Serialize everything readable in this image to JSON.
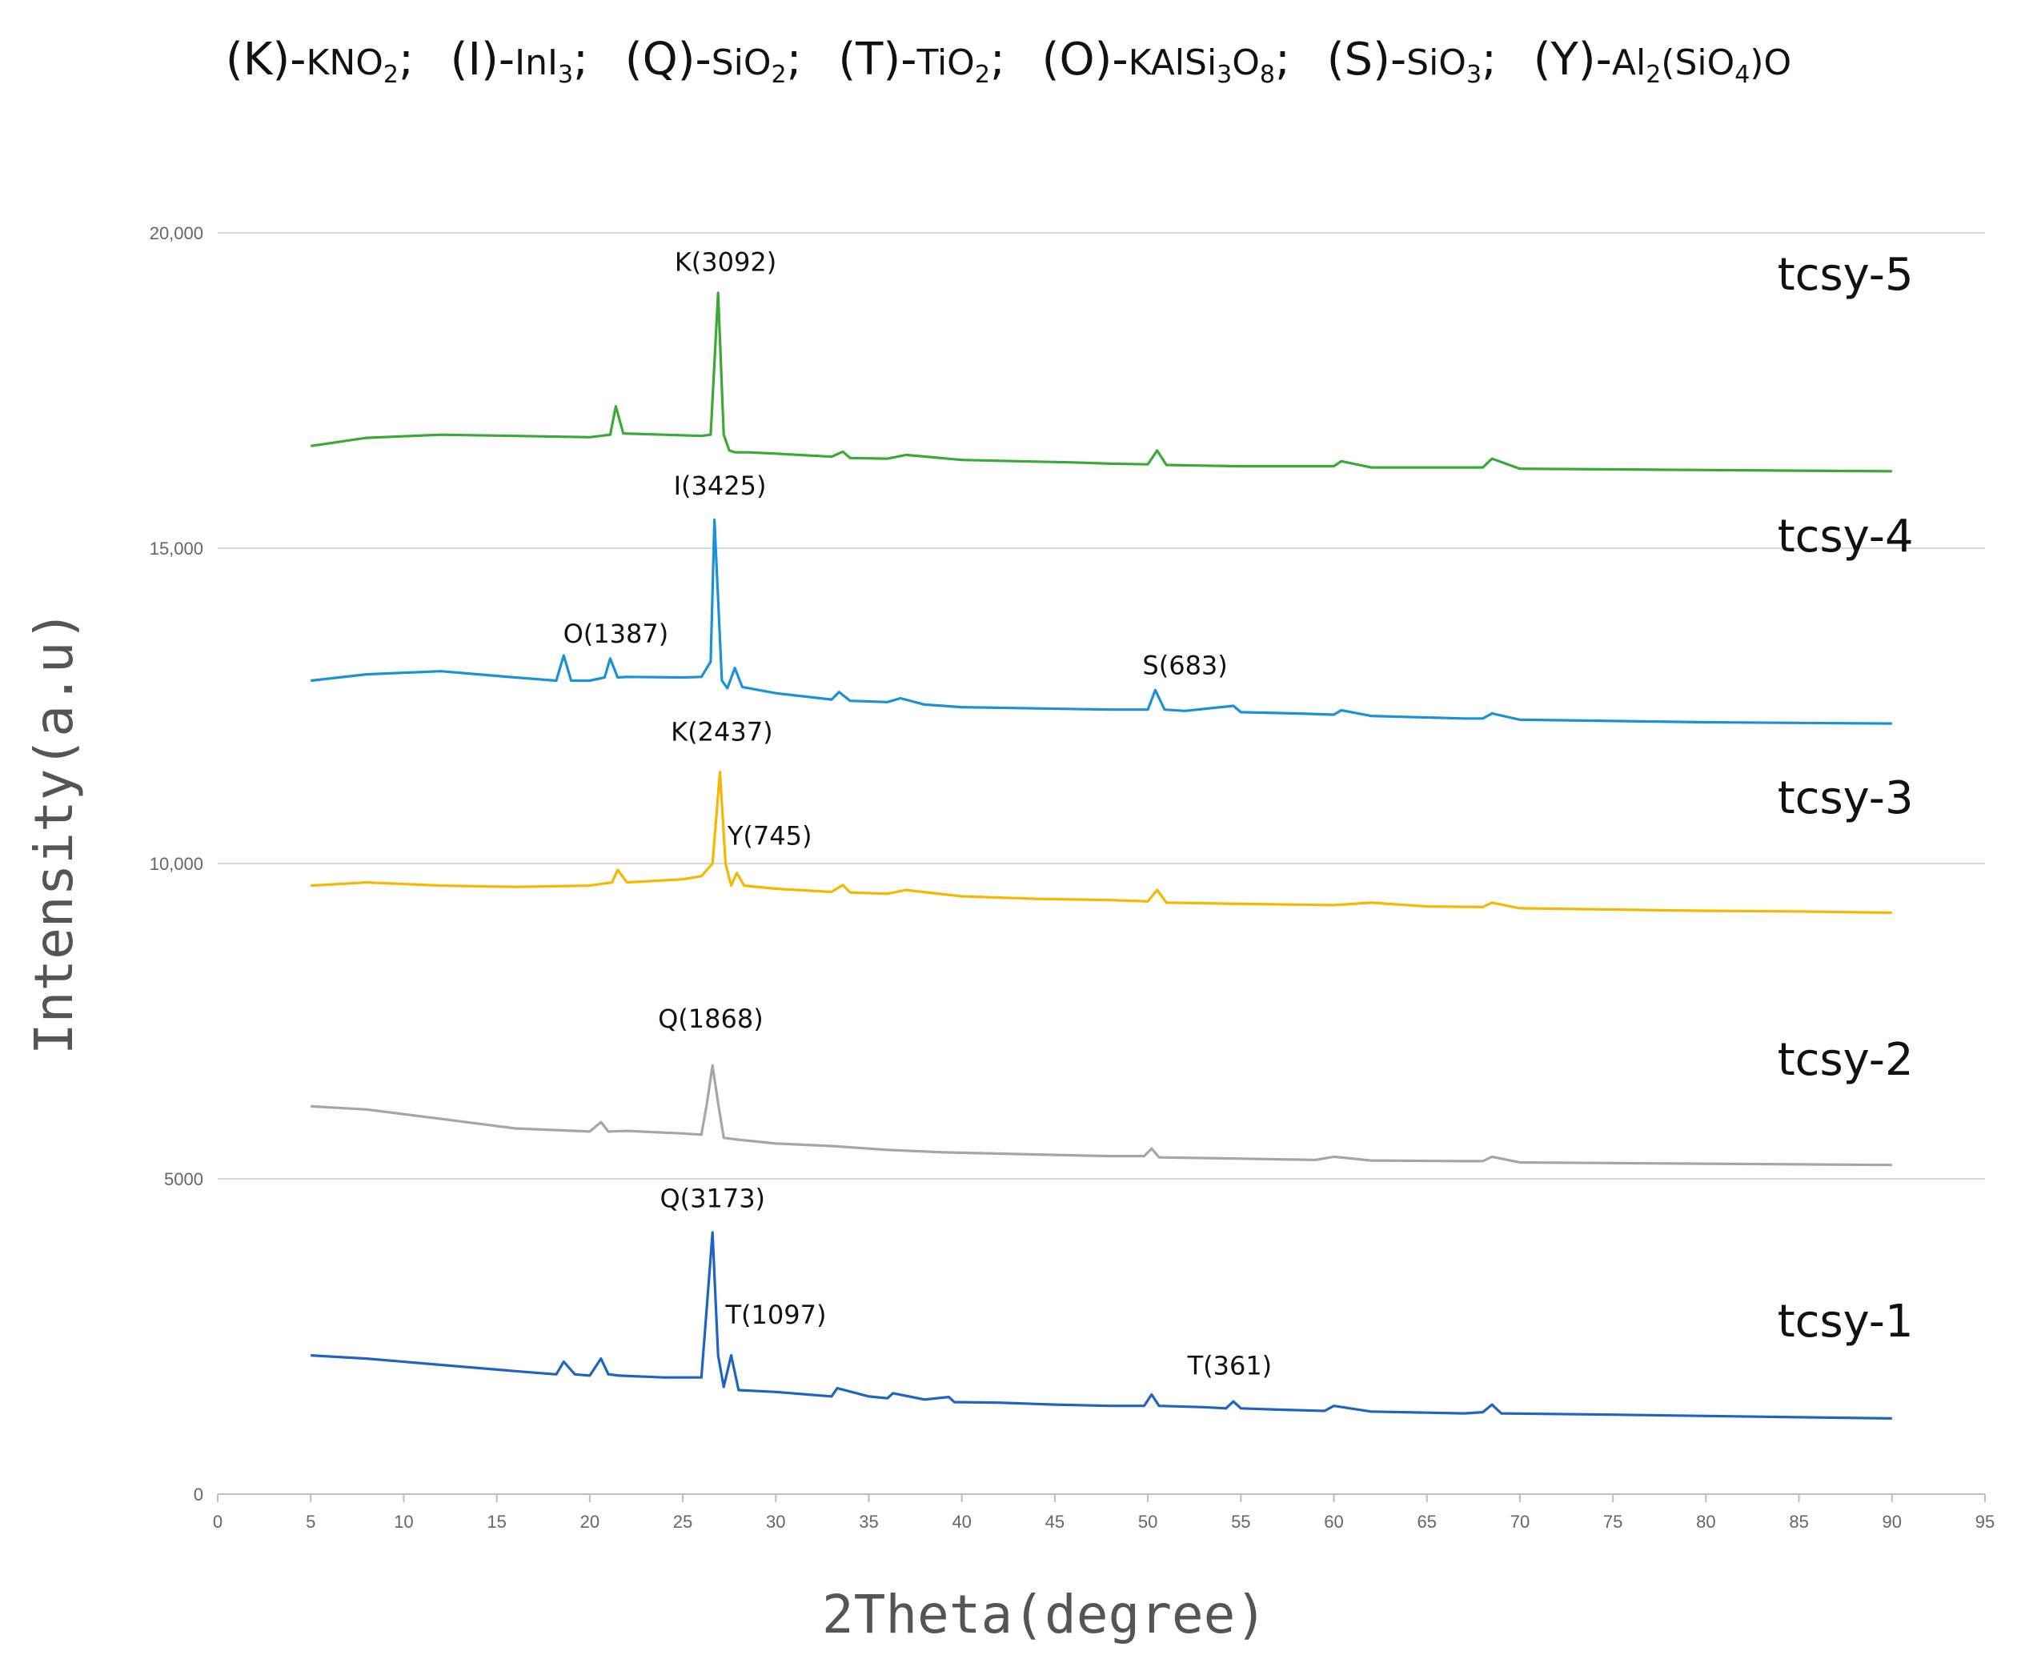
{
  "legend": [
    {
      "code": "(K)",
      "base": "KNO",
      "sub": "2",
      "tail": ""
    },
    {
      "code": "(I)",
      "base": "InI",
      "sub": "3",
      "tail": ""
    },
    {
      "code": "(Q)",
      "base": "SiO",
      "sub": "2",
      "tail": ""
    },
    {
      "code": "(T)",
      "base": "TiO",
      "sub": "2",
      "tail": ""
    },
    {
      "code": "(O)",
      "base": "KAlSi",
      "sub": "3",
      "mid": "O",
      "sub2": "8",
      "tail": ""
    },
    {
      "code": "(S)",
      "base": "SiO",
      "sub": "3",
      "tail": ""
    },
    {
      "code": "(Y)",
      "base": "Al",
      "sub": "2",
      "mid": "(SiO",
      "sub2": "4",
      "tail": ")O"
    }
  ],
  "chart_data": {
    "type": "line",
    "title": "",
    "xlabel": "2Theta(degree)",
    "ylabel": "Intensity(a.u)",
    "xlim": [
      0,
      95
    ],
    "ylim": [
      0,
      20000
    ],
    "x_ticks": [
      "0",
      "5",
      "10",
      "15",
      "20",
      "25",
      "30",
      "35",
      "40",
      "45",
      "50",
      "55",
      "60",
      "65",
      "70",
      "75",
      "80",
      "85",
      "90",
      "95"
    ],
    "y_ticks": [
      {
        "value": 0,
        "label": "0"
      },
      {
        "value": 5000,
        "label": "5000"
      },
      {
        "value": 10000,
        "label": "10,000"
      },
      {
        "value": 15000,
        "label": "15,000"
      },
      {
        "value": 20000,
        "label": "20,000"
      }
    ],
    "grid": "horizontal",
    "series": [
      {
        "name": "tcsy-1",
        "color": "#1f64c0",
        "x": [
          5,
          8,
          12,
          16,
          18.2,
          18.6,
          19.2,
          20,
          20.6,
          21,
          21.6,
          24,
          26,
          26.3,
          26.6,
          26.9,
          27.2,
          27.6,
          28,
          30,
          33,
          33.3,
          35,
          36,
          36.3,
          38,
          39.3,
          39.6,
          42,
          45,
          48,
          49.8,
          50.2,
          50.6,
          53,
          54.2,
          54.6,
          55,
          57,
          59.5,
          60,
          62,
          67,
          68,
          68.5,
          69,
          75,
          80,
          85,
          90
        ],
        "y": [
          2200,
          2150,
          2050,
          1950,
          1900,
          2100,
          1900,
          1880,
          2150,
          1900,
          1880,
          1850,
          1850,
          3000,
          4150,
          2200,
          1700,
          2200,
          1650,
          1620,
          1550,
          1680,
          1550,
          1520,
          1600,
          1500,
          1540,
          1460,
          1450,
          1420,
          1400,
          1400,
          1580,
          1400,
          1380,
          1360,
          1470,
          1360,
          1340,
          1320,
          1400,
          1310,
          1280,
          1300,
          1420,
          1280,
          1260,
          1240,
          1220,
          1200
        ]
      },
      {
        "name": "tcsy-2",
        "color": "#a6a6a6",
        "x": [
          5,
          8,
          12,
          16,
          20,
          20.6,
          21,
          22,
          25,
          26,
          26.3,
          26.6,
          26.9,
          27.2,
          28,
          30,
          33,
          36,
          39,
          42,
          45,
          48,
          49.8,
          50.2,
          50.6,
          55,
          59,
          60,
          62,
          67,
          68,
          68.5,
          70,
          75,
          80,
          85,
          90
        ],
        "y": [
          6150,
          6100,
          5950,
          5800,
          5750,
          5900,
          5750,
          5760,
          5720,
          5700,
          6200,
          6800,
          6200,
          5650,
          5620,
          5560,
          5520,
          5460,
          5420,
          5400,
          5380,
          5360,
          5360,
          5480,
          5340,
          5320,
          5300,
          5350,
          5290,
          5280,
          5280,
          5350,
          5260,
          5250,
          5240,
          5230,
          5220
        ]
      },
      {
        "name": "tcsy-3",
        "color": "#f5b800",
        "x": [
          5,
          8,
          12,
          16,
          20,
          21.2,
          21.5,
          22,
          25,
          26,
          26.6,
          27,
          27.3,
          27.6,
          27.9,
          28.3,
          30,
          33,
          33.6,
          34,
          36,
          37,
          40,
          44,
          48,
          50,
          50.5,
          51,
          55,
          60,
          62,
          65,
          68,
          68.5,
          70,
          75,
          80,
          85,
          90
        ],
        "y": [
          9650,
          9700,
          9650,
          9630,
          9650,
          9700,
          9900,
          9700,
          9750,
          9800,
          10000,
          11450,
          10000,
          9650,
          9850,
          9650,
          9600,
          9550,
          9660,
          9540,
          9520,
          9580,
          9480,
          9440,
          9420,
          9400,
          9580,
          9380,
          9360,
          9340,
          9380,
          9320,
          9310,
          9380,
          9290,
          9270,
          9250,
          9240,
          9220
        ]
      },
      {
        "name": "tcsy-4",
        "color": "#1b91d6",
        "x": [
          5,
          8,
          12,
          16,
          18.2,
          18.6,
          19,
          20,
          20.8,
          21.1,
          21.5,
          22,
          25,
          26,
          26.5,
          26.7,
          27.1,
          27.4,
          27.8,
          28.2,
          30,
          33,
          33.4,
          34,
          36,
          36.7,
          38,
          40,
          44,
          48,
          50,
          50.4,
          50.9,
          52,
          54.6,
          55,
          58,
          60,
          60.4,
          62,
          67,
          68,
          68.5,
          70,
          75,
          80,
          85,
          90
        ],
        "y": [
          12900,
          13000,
          13050,
          12950,
          12900,
          13300,
          12900,
          12900,
          12950,
          13250,
          12950,
          12960,
          12950,
          12960,
          13200,
          15450,
          12900,
          12780,
          13100,
          12800,
          12700,
          12600,
          12720,
          12580,
          12560,
          12620,
          12520,
          12480,
          12460,
          12440,
          12440,
          12750,
          12440,
          12420,
          12500,
          12400,
          12380,
          12360,
          12430,
          12340,
          12300,
          12300,
          12380,
          12280,
          12260,
          12240,
          12230,
          12220
        ]
      },
      {
        "name": "tcsy-5",
        "color": "#3aaa35",
        "x": [
          5,
          8,
          12,
          16,
          20,
          21.1,
          21.4,
          21.8,
          24,
          26,
          26.5,
          26.9,
          27.2,
          27.5,
          27.8,
          28.5,
          30,
          33,
          33.6,
          34,
          36,
          37,
          40,
          43,
          46,
          48,
          50,
          50.5,
          51,
          55,
          60,
          60.4,
          62,
          65,
          68,
          68.5,
          70,
          75,
          80,
          85,
          90
        ],
        "y": [
          16620,
          16750,
          16800,
          16780,
          16760,
          16800,
          17250,
          16820,
          16800,
          16780,
          16800,
          19050,
          16800,
          16550,
          16520,
          16520,
          16500,
          16450,
          16530,
          16430,
          16420,
          16480,
          16400,
          16380,
          16360,
          16340,
          16330,
          16550,
          16320,
          16300,
          16300,
          16380,
          16280,
          16280,
          16280,
          16420,
          16260,
          16250,
          16240,
          16230,
          16220
        ]
      }
    ],
    "series_labels": [
      {
        "series": "tcsy-1",
        "text": "tcsy-1",
        "x": 87.5,
        "y": 2500
      },
      {
        "series": "tcsy-2",
        "text": "tcsy-2",
        "x": 87.5,
        "y": 6650
      },
      {
        "series": "tcsy-3",
        "text": "tcsy-3",
        "x": 87.5,
        "y": 10800
      },
      {
        "series": "tcsy-4",
        "text": "tcsy-4",
        "x": 87.5,
        "y": 14950
      },
      {
        "series": "tcsy-5",
        "text": "tcsy-5",
        "x": 87.5,
        "y": 19100
      }
    ],
    "annotations": [
      {
        "text": "Q(3173)",
        "x": 26.6,
        "y": 4550,
        "anchor": "middle"
      },
      {
        "text": "T(1097)",
        "x": 27.3,
        "y": 2700,
        "anchor": "start"
      },
      {
        "text": "T(361)",
        "x": 54.4,
        "y": 1900,
        "anchor": "middle"
      },
      {
        "text": "Q(1868)",
        "x": 26.5,
        "y": 7400,
        "anchor": "middle"
      },
      {
        "text": "K(2437)",
        "x": 27.1,
        "y": 11950,
        "anchor": "middle"
      },
      {
        "text": "Y(745)",
        "x": 27.4,
        "y": 10300,
        "anchor": "start"
      },
      {
        "text": "I(3425)",
        "x": 27.0,
        "y": 15850,
        "anchor": "middle"
      },
      {
        "text": "O(1387)",
        "x": 21.4,
        "y": 13500,
        "anchor": "middle"
      },
      {
        "text": "S(683)",
        "x": 52.0,
        "y": 13000,
        "anchor": "middle"
      },
      {
        "text": "K(3092)",
        "x": 27.3,
        "y": 19400,
        "anchor": "middle"
      }
    ]
  }
}
